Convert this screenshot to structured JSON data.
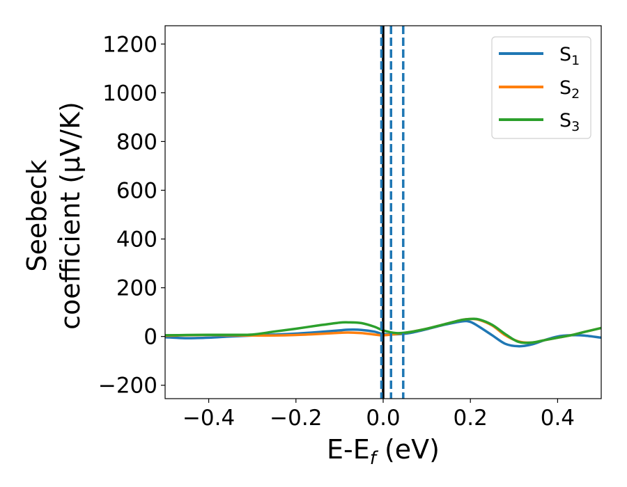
{
  "chart_data": {
    "type": "line",
    "xlabel": {
      "main": "E-E",
      "sub": "f",
      "unit": " (eV)"
    },
    "ylabel": {
      "line1": "Seebeck",
      "line2": "coefficient  (μV/K)"
    },
    "xlim": [
      -0.5,
      0.5
    ],
    "ylim": [
      -255,
      1275
    ],
    "xticks": [
      -0.4,
      -0.2,
      0.0,
      0.2,
      0.4
    ],
    "xtick_labels": [
      "−0.4",
      "−0.2",
      "0.0",
      "0.2",
      "0.4"
    ],
    "yticks": [
      -200,
      0,
      200,
      400,
      600,
      800,
      1000,
      1200
    ],
    "ytick_labels": [
      "−200",
      "0",
      "200",
      "400",
      "600",
      "800",
      "1000",
      "1200"
    ],
    "grid": false,
    "legend_position": "top-right",
    "vertical_lines": [
      {
        "x": 0.0,
        "color": "#000000",
        "style": "solid"
      },
      {
        "x": -0.004,
        "color": "#1f77b4",
        "style": "dashed"
      },
      {
        "x": 0.018,
        "color": "#1f77b4",
        "style": "dashed"
      },
      {
        "x": 0.046,
        "color": "#1f77b4",
        "style": "dashed"
      }
    ],
    "series": [
      {
        "name": "S",
        "sub": "1",
        "color": "#1f77b4",
        "x": [
          -0.5,
          -0.45,
          -0.4,
          -0.35,
          -0.3,
          -0.25,
          -0.2,
          -0.15,
          -0.1,
          -0.08,
          -0.05,
          -0.02,
          0.0,
          0.03,
          0.06,
          0.1,
          0.14,
          0.18,
          0.2,
          0.22,
          0.25,
          0.28,
          0.31,
          0.34,
          0.37,
          0.4,
          0.43,
          0.46,
          0.5
        ],
        "y": [
          -3,
          -7,
          -5,
          0,
          4,
          8,
          12,
          18,
          25,
          28,
          27,
          20,
          10,
          9,
          14,
          30,
          48,
          62,
          60,
          40,
          5,
          -30,
          -40,
          -33,
          -15,
          0,
          5,
          4,
          -5
        ]
      },
      {
        "name": "S",
        "sub": "2",
        "color": "#ff7f0e",
        "x": [
          -0.5,
          -0.45,
          -0.4,
          -0.35,
          -0.3,
          -0.25,
          -0.2,
          -0.15,
          -0.1,
          -0.08,
          -0.05,
          -0.02,
          0.0,
          0.03,
          0.06,
          0.1,
          0.14,
          0.18,
          0.2,
          0.22,
          0.25,
          0.28,
          0.31,
          0.34,
          0.37,
          0.4,
          0.43,
          0.46,
          0.5
        ],
        "y": [
          3,
          5,
          6,
          5,
          4,
          4,
          6,
          10,
          15,
          16,
          14,
          8,
          5,
          10,
          18,
          32,
          50,
          68,
          72,
          68,
          45,
          5,
          -20,
          -25,
          -15,
          -5,
          5,
          18,
          35
        ]
      },
      {
        "name": "S",
        "sub": "3",
        "color": "#2ca02c",
        "x": [
          -0.5,
          -0.45,
          -0.4,
          -0.35,
          -0.3,
          -0.25,
          -0.2,
          -0.15,
          -0.1,
          -0.08,
          -0.05,
          -0.02,
          0.0,
          0.03,
          0.06,
          0.1,
          0.14,
          0.18,
          0.2,
          0.22,
          0.25,
          0.28,
          0.31,
          0.34,
          0.37,
          0.4,
          0.43,
          0.46,
          0.5
        ],
        "y": [
          5,
          6,
          7,
          7,
          8,
          20,
          32,
          45,
          57,
          58,
          55,
          40,
          25,
          14,
          18,
          32,
          50,
          68,
          72,
          70,
          48,
          10,
          -22,
          -25,
          -15,
          -5,
          5,
          18,
          35
        ]
      }
    ]
  }
}
